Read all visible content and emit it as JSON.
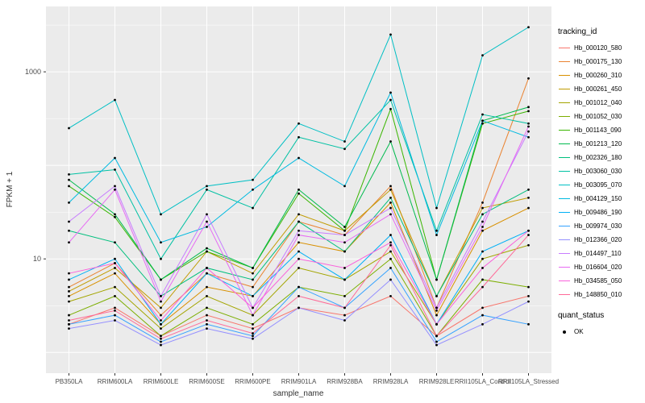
{
  "figure": {
    "background": "#FFFFFF",
    "panel_background": "#EBEBEB",
    "gridline_color": "#FFFFFF",
    "point_color": "#000000",
    "tick_label_color": "#4D4D4D",
    "axis_title_color": "#333333"
  },
  "legend": {
    "tracking_id_title": "tracking_id",
    "quant_status_title": "quant_status",
    "quant_status_value": "OK"
  },
  "chart_data": {
    "type": "line",
    "title": "",
    "xlabel": "sample_name",
    "ylabel": "FPKM + 1",
    "y_scale": "log10",
    "grid": true,
    "legend_position": "right",
    "y_ticks": [
      10,
      1000
    ],
    "y_major_gridlines": [
      1,
      10,
      100,
      1000
    ],
    "y_minor_gridlines": [
      3.1623,
      31.623,
      316.23,
      3162.3
    ],
    "y_range": [
      0.6,
      5000
    ],
    "categories": [
      "PB350LA",
      "RRIM600LA",
      "RRIM600LE",
      "RRIM600SE",
      "RRIM600PE",
      "RRIM901LA",
      "RRIM928BA",
      "RRIM928LA",
      "RRIM928LE",
      "RRII105LA_Control",
      "RRII105LA_Stressed"
    ],
    "series": [
      {
        "name": "Hb_000120_580",
        "color": "#F8766D",
        "values": [
          2.0,
          3.0,
          1.5,
          2.5,
          1.8,
          3.0,
          2.5,
          4.0,
          1.5,
          3.0,
          4.0
        ]
      },
      {
        "name": "Hb_000175_130",
        "color": "#EA8331",
        "values": [
          5,
          9,
          2.5,
          7,
          5,
          25,
          18,
          60,
          3,
          40,
          850
        ]
      },
      {
        "name": "Hb_000260_310",
        "color": "#D89000",
        "values": [
          4,
          7,
          2,
          5,
          4,
          15,
          12,
          40,
          2.5,
          20,
          35
        ]
      },
      {
        "name": "Hb_000261_450",
        "color": "#C09B00",
        "values": [
          4.5,
          8,
          3,
          12,
          7,
          30,
          20,
          55,
          4,
          35,
          45
        ]
      },
      {
        "name": "Hb_001012_040",
        "color": "#A3A500",
        "values": [
          3.5,
          5,
          1.8,
          4,
          2.5,
          8,
          6,
          12,
          2,
          10,
          14
        ]
      },
      {
        "name": "Hb_001052_030",
        "color": "#7CAE00",
        "values": [
          2.5,
          4,
          1.5,
          3,
          2,
          5,
          4,
          10,
          1.5,
          6,
          5
        ]
      },
      {
        "name": "Hb_001143_090",
        "color": "#39B600",
        "values": [
          60,
          28,
          6,
          12,
          8,
          50,
          20,
          400,
          6,
          280,
          380
        ]
      },
      {
        "name": "Hb_001213_120",
        "color": "#00BB4E",
        "values": [
          70,
          30,
          6,
          13,
          8,
          55,
          22,
          180,
          6,
          300,
          420
        ]
      },
      {
        "name": "Hb_002326_180",
        "color": "#00BF7D",
        "values": [
          20,
          15,
          4,
          8,
          6,
          25,
          12,
          45,
          4,
          30,
          55
        ]
      },
      {
        "name": "Hb_003060_030",
        "color": "#00C1A3",
        "values": [
          80,
          90,
          10,
          55,
          35,
          200,
          150,
          500,
          20,
          350,
          280
        ]
      },
      {
        "name": "Hb_003095_070",
        "color": "#00BFC4",
        "values": [
          250,
          500,
          30,
          60,
          70,
          280,
          180,
          2500,
          35,
          1500,
          3000
        ]
      },
      {
        "name": "Hb_004129_150",
        "color": "#00BAE0",
        "values": [
          40,
          120,
          15,
          22,
          55,
          120,
          60,
          600,
          18,
          300,
          200
        ]
      },
      {
        "name": "Hb_009486_190",
        "color": "#00B0F6",
        "values": [
          6,
          10,
          2,
          7,
          4,
          12,
          6,
          18,
          2,
          12,
          20
        ]
      },
      {
        "name": "Hb_009974_030",
        "color": "#35A2FF",
        "values": [
          2,
          2.5,
          1.3,
          2,
          1.5,
          5,
          3,
          8,
          1.3,
          2.5,
          2
        ]
      },
      {
        "name": "Hb_012366_020",
        "color": "#9590FF",
        "values": [
          1.8,
          2.2,
          1.2,
          1.8,
          1.4,
          3,
          2.2,
          6,
          1.2,
          2,
          3.5
        ]
      },
      {
        "name": "Hb_014497_110",
        "color": "#C77CFF",
        "values": [
          25,
          60,
          4,
          30,
          3,
          20,
          18,
          35,
          3,
          25,
          230
        ]
      },
      {
        "name": "Hb_016604_020",
        "color": "#E76BF3",
        "values": [
          15,
          55,
          3.5,
          25,
          2.5,
          18,
          15,
          30,
          2.8,
          22,
          260
        ]
      },
      {
        "name": "Hb_034585_050",
        "color": "#FA62DB",
        "values": [
          7,
          9,
          2.2,
          8,
          3,
          10,
          8,
          15,
          2,
          8,
          20
        ]
      },
      {
        "name": "Hb_148850_010",
        "color": "#FF6A98",
        "values": [
          2.2,
          2.8,
          1.4,
          2.2,
          1.6,
          4,
          3,
          14,
          1.5,
          5,
          18
        ]
      }
    ]
  }
}
